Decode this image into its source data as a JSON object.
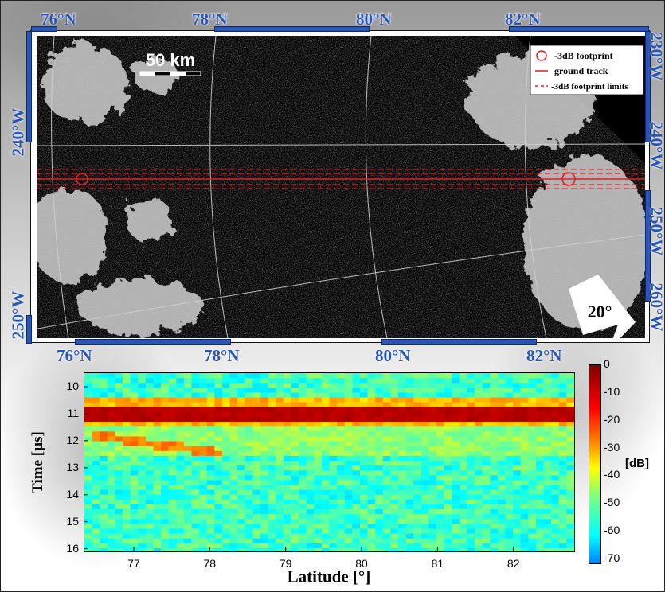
{
  "map": {
    "top_lat_labels": [
      "76°N",
      "78°N",
      "80°N",
      "82°N"
    ],
    "bottom_lat_labels": [
      "76°N",
      "78°N",
      "80°N",
      "82°N"
    ],
    "left_lon_labels": [
      "240°W",
      "250°W"
    ],
    "right_lon_labels": [
      "230°W",
      "240°W",
      "250°W",
      "260°W"
    ],
    "scale_bar_label": "50 km",
    "north_arrow_label": "20°",
    "legend": {
      "footprint": "-3dB footprint",
      "ground_track": "ground track",
      "limits": "-3dB footprint limits"
    },
    "frame_color": "#2a55b8",
    "track_color": "#e02020"
  },
  "chart_data": {
    "type": "heatmap",
    "xlabel": "Latitude [°]",
    "ylabel": "Time [µs]",
    "x_ticks": [
      "77",
      "78",
      "79",
      "80",
      "81",
      "82"
    ],
    "y_ticks": [
      "10",
      "11",
      "12",
      "13",
      "14",
      "15",
      "16"
    ],
    "xlim": [
      76.35,
      82.8
    ],
    "ylim": [
      16.1,
      9.5
    ],
    "colorbar": {
      "label": "[dB]",
      "ticks": [
        "0",
        "-10",
        "-20",
        "-30",
        "-40",
        "-50",
        "-60",
        "-70"
      ],
      "range": [
        -72,
        0
      ],
      "colormap": "jet"
    },
    "features": {
      "surface_echo_time_us": 11.0,
      "surface_echo_level_db": -5,
      "subsurface_echo_start": {
        "lat": 76.5,
        "time_us": 11.8
      },
      "subsurface_echo_end": {
        "lat": 78.2,
        "time_us": 12.5
      },
      "background_level_db": -55
    }
  }
}
